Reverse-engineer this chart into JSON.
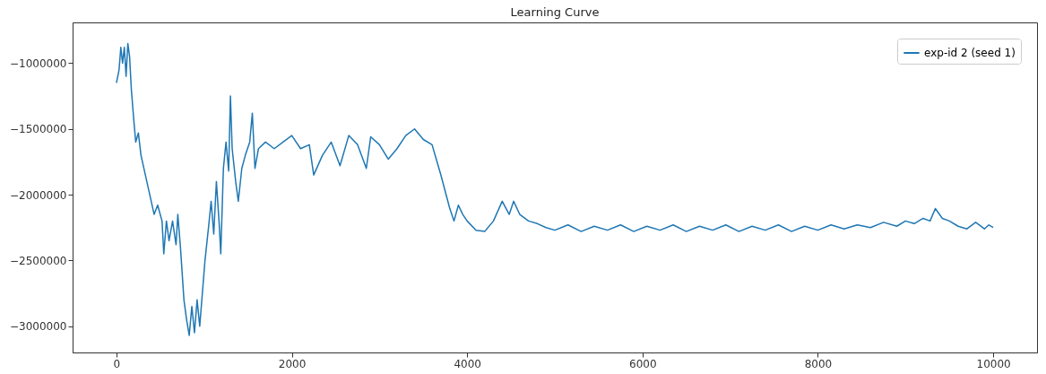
{
  "chart_data": {
    "type": "line",
    "title": "Learning Curve",
    "xlim": [
      -500,
      10500
    ],
    "ylim": [
      -3200000,
      -690000
    ],
    "xticks": [
      0,
      2000,
      4000,
      6000,
      8000,
      10000
    ],
    "yticks": [
      -3000000,
      -2500000,
      -2000000,
      -1500000,
      -1000000
    ],
    "grid": false,
    "legend": "top right",
    "x": [
      0,
      30,
      50,
      70,
      90,
      110,
      130,
      150,
      170,
      200,
      220,
      250,
      280,
      330,
      380,
      430,
      470,
      520,
      540,
      570,
      600,
      640,
      680,
      700,
      730,
      770,
      800,
      830,
      860,
      890,
      920,
      950,
      980,
      1010,
      1050,
      1080,
      1110,
      1140,
      1170,
      1190,
      1220,
      1250,
      1280,
      1300,
      1320,
      1360,
      1390,
      1430,
      1470,
      1520,
      1550,
      1580,
      1620,
      1700,
      1800,
      1900,
      2000,
      2100,
      2200,
      2250,
      2350,
      2450,
      2550,
      2650,
      2750,
      2850,
      2900,
      3000,
      3100,
      3200,
      3300,
      3400,
      3500,
      3600,
      3700,
      3800,
      3850,
      3900,
      3950,
      4000,
      4100,
      4200,
      4300,
      4400,
      4480,
      4530,
      4600,
      4700,
      4800,
      4900,
      5000,
      5150,
      5300,
      5450,
      5600,
      5750,
      5900,
      6050,
      6200,
      6350,
      6500,
      6650,
      6800,
      6950,
      7100,
      7250,
      7400,
      7550,
      7700,
      7850,
      8000,
      8150,
      8300,
      8450,
      8600,
      8750,
      8900,
      9000,
      9100,
      9200,
      9280,
      9340,
      9420,
      9500,
      9600,
      9700,
      9800,
      9900,
      9950,
      10000
    ],
    "series": [
      {
        "name": "exp-id 2 (seed 1)",
        "color": "#1f77b4",
        "values": [
          -1150000,
          -1050000,
          -880000,
          -1000000,
          -880000,
          -1100000,
          -850000,
          -950000,
          -1200000,
          -1450000,
          -1600000,
          -1530000,
          -1700000,
          -1850000,
          -2000000,
          -2150000,
          -2080000,
          -2200000,
          -2450000,
          -2200000,
          -2350000,
          -2200000,
          -2380000,
          -2150000,
          -2400000,
          -2800000,
          -2950000,
          -3070000,
          -2850000,
          -3050000,
          -2800000,
          -3000000,
          -2750000,
          -2500000,
          -2250000,
          -2050000,
          -2300000,
          -1900000,
          -2200000,
          -2450000,
          -1800000,
          -1600000,
          -1820000,
          -1250000,
          -1650000,
          -1900000,
          -2050000,
          -1800000,
          -1700000,
          -1600000,
          -1380000,
          -1800000,
          -1650000,
          -1600000,
          -1650000,
          -1600000,
          -1550000,
          -1650000,
          -1620000,
          -1850000,
          -1700000,
          -1600000,
          -1780000,
          -1550000,
          -1620000,
          -1800000,
          -1560000,
          -1620000,
          -1730000,
          -1650000,
          -1550000,
          -1500000,
          -1580000,
          -1620000,
          -1850000,
          -2100000,
          -2200000,
          -2080000,
          -2150000,
          -2200000,
          -2270000,
          -2280000,
          -2200000,
          -2050000,
          -2150000,
          -2050000,
          -2150000,
          -2200000,
          -2220000,
          -2250000,
          -2270000,
          -2230000,
          -2280000,
          -2240000,
          -2270000,
          -2230000,
          -2280000,
          -2240000,
          -2270000,
          -2230000,
          -2280000,
          -2240000,
          -2270000,
          -2230000,
          -2280000,
          -2240000,
          -2270000,
          -2230000,
          -2280000,
          -2240000,
          -2270000,
          -2230000,
          -2260000,
          -2230000,
          -2250000,
          -2210000,
          -2240000,
          -2200000,
          -2220000,
          -2180000,
          -2200000,
          -2105000,
          -2180000,
          -2200000,
          -2240000,
          -2260000,
          -2210000,
          -2260000,
          -2230000,
          -2250000
        ]
      }
    ]
  }
}
